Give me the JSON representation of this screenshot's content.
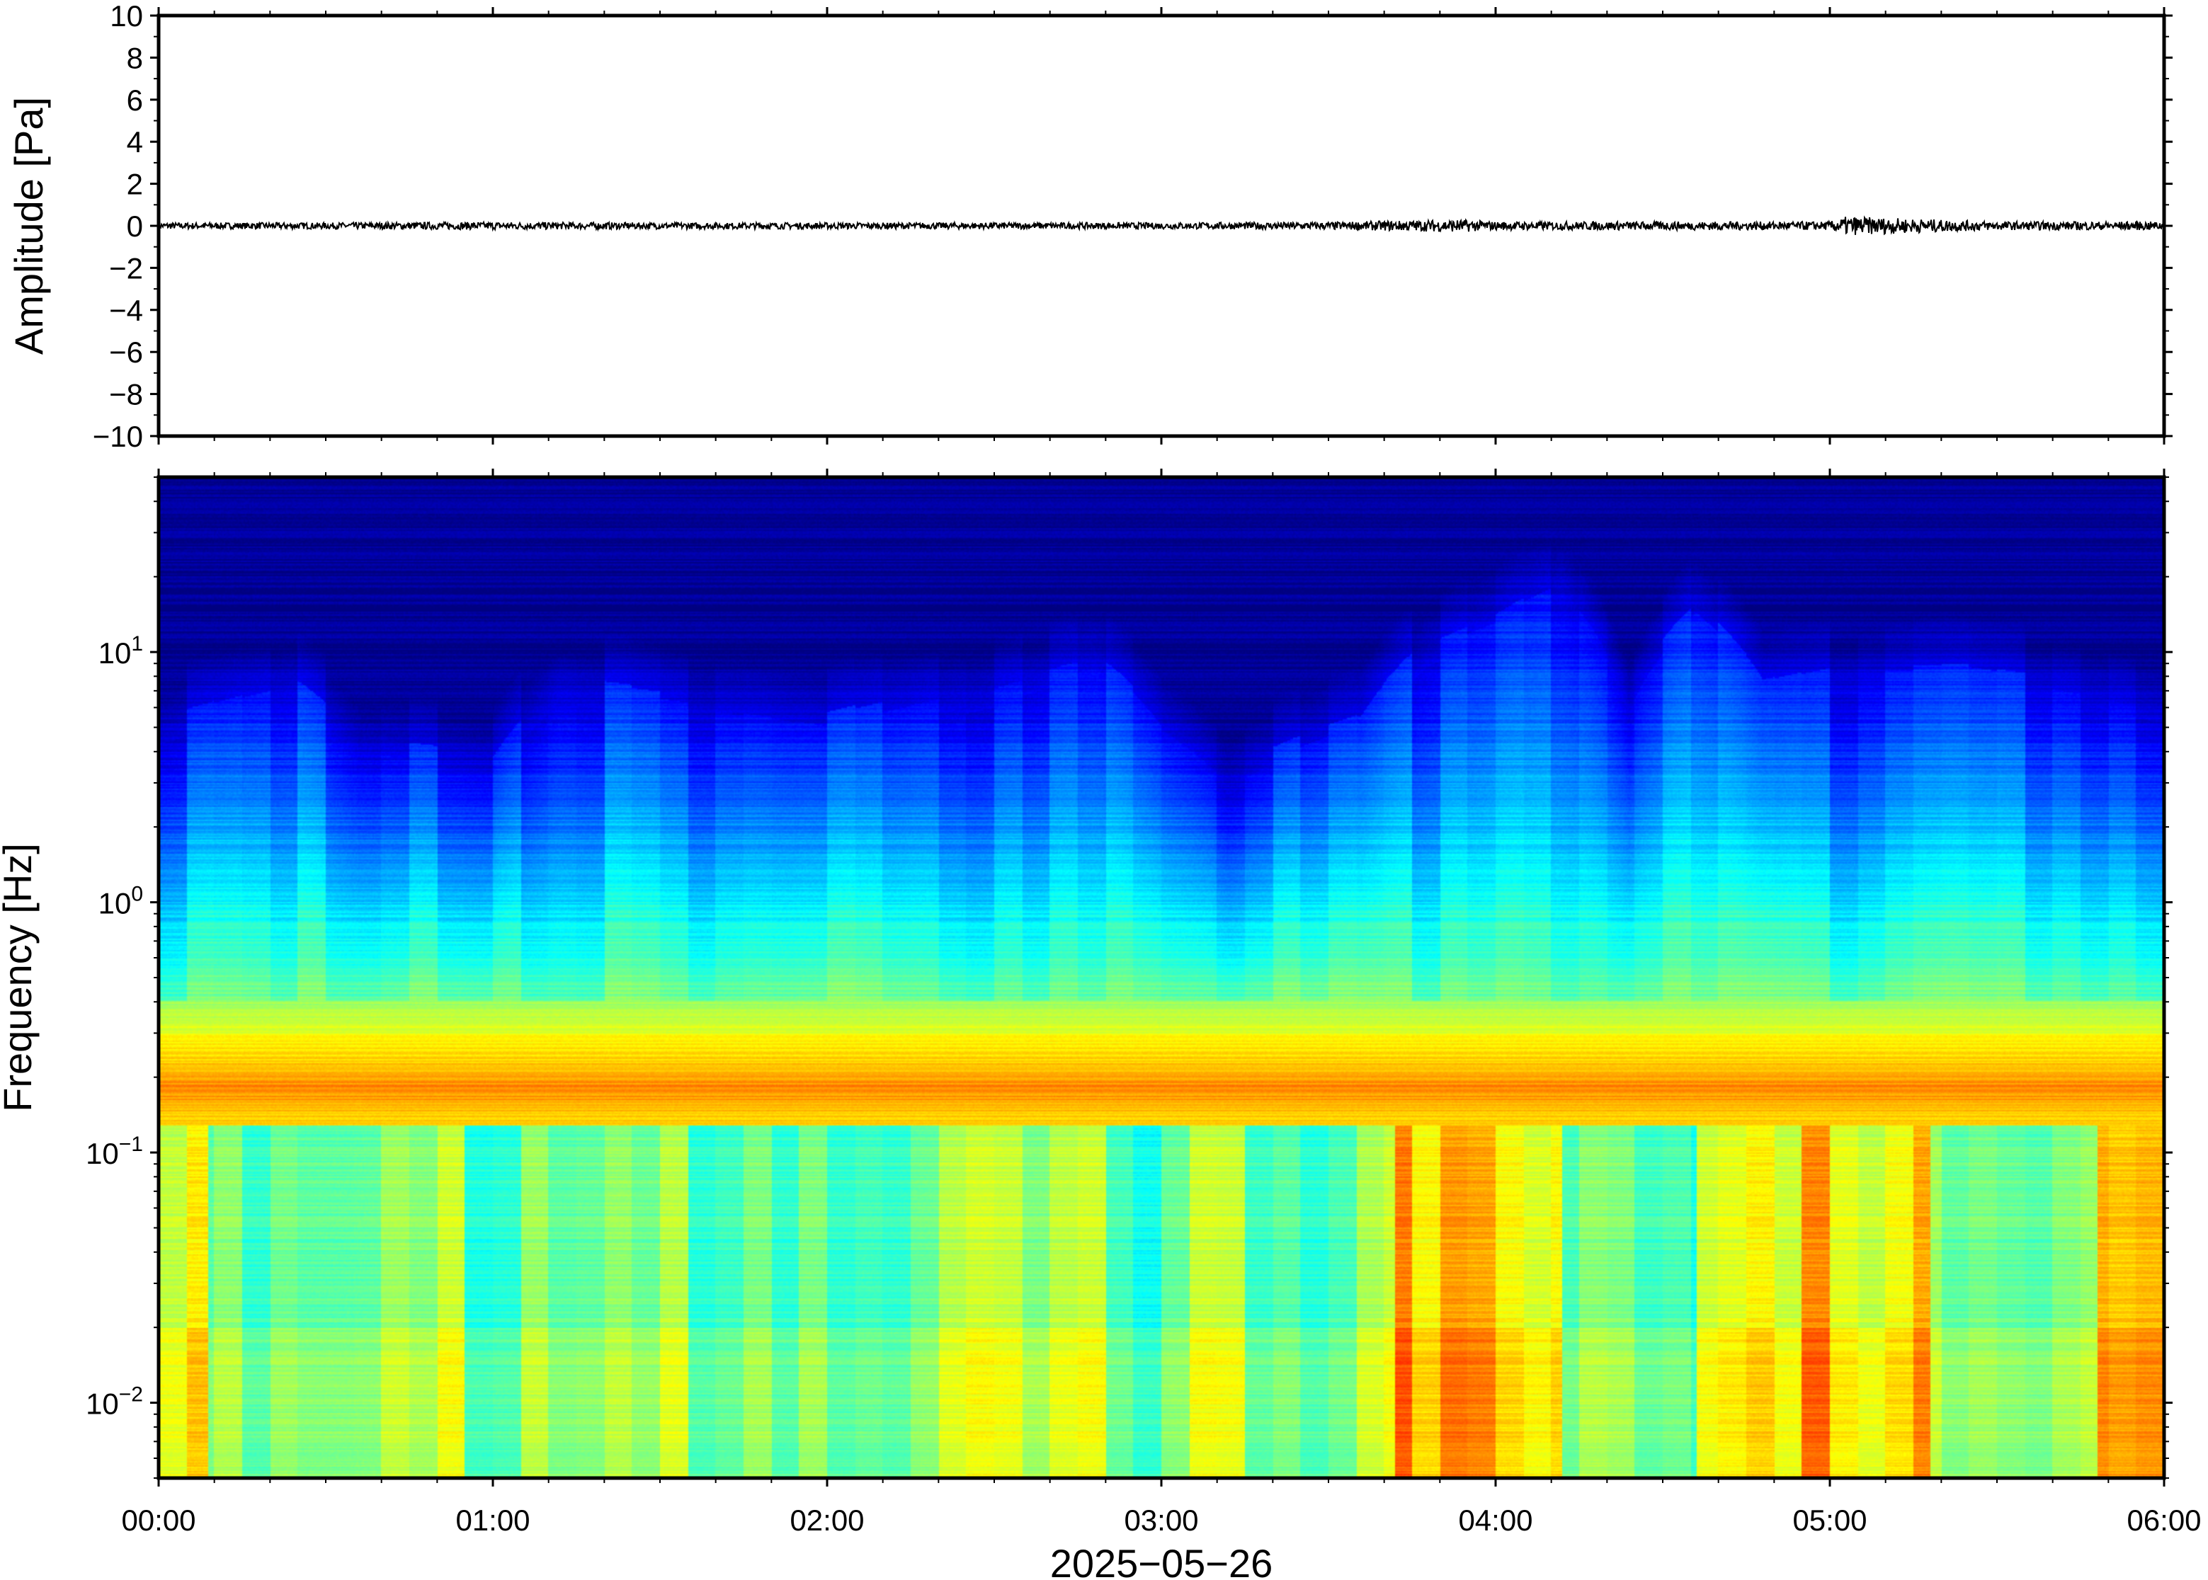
{
  "chart_data": [
    {
      "type": "line",
      "panel": "waveform",
      "ylabel": "Amplitude [Pa]",
      "ylim": [
        -10,
        10
      ],
      "yticks": [
        10,
        8,
        6,
        4,
        2,
        0,
        -2,
        -4,
        -6,
        -8,
        -10
      ],
      "ytick_labels": [
        "10",
        "8",
        "6",
        "4",
        "2",
        "0",
        "−2",
        "−4",
        "−6",
        "−8",
        "−10"
      ],
      "xlim_hours": [
        0,
        6
      ],
      "series": [
        {
          "style": "black noisy trace near zero",
          "x_hours": [
            0,
            0.5,
            1,
            1.5,
            2,
            2.5,
            3,
            3.5,
            3.9,
            4,
            4.5,
            5,
            5.05,
            5.5,
            6
          ],
          "envelope_pa": [
            0.15,
            0.15,
            0.18,
            0.15,
            0.15,
            0.15,
            0.15,
            0.18,
            0.3,
            0.2,
            0.2,
            0.2,
            0.45,
            0.2,
            0.2
          ]
        }
      ],
      "line_color": "#000000",
      "grid": false
    },
    {
      "type": "heatmap",
      "panel": "spectrogram",
      "ylabel": "Frequency [Hz]",
      "xlabel": "2025−05−26",
      "yscale": "log",
      "ylim_hz": [
        0.005,
        50
      ],
      "ytick_labels": [
        {
          "base": "10",
          "exp": "1",
          "value": 10
        },
        {
          "base": "10",
          "exp": "0",
          "value": 1
        },
        {
          "base": "10",
          "exp": "−1",
          "value": 0.1
        },
        {
          "base": "10",
          "exp": "−2",
          "value": 0.01
        }
      ],
      "xticks": [
        "00:00",
        "01:00",
        "02:00",
        "03:00",
        "04:00",
        "05:00",
        "06:00"
      ],
      "xlim_hours": [
        0,
        6
      ],
      "colormap": "jet",
      "microseism_peak_hz": 0.18,
      "high_freq_energy_cutoff_hz": {
        "x_hours": [
          0,
          0.4,
          0.6,
          1.0,
          1.2,
          1.6,
          2.0,
          2.5,
          2.8,
          3.0,
          3.2,
          3.6,
          3.8,
          4.0,
          4.2,
          4.4,
          4.6,
          4.8,
          5.0,
          5.4,
          6.0
        ],
        "hz": [
          5,
          7,
          4,
          3.5,
          7,
          6,
          5,
          7,
          9,
          5,
          3,
          5,
          10,
          13,
          18,
          6,
          14,
          7,
          8,
          8,
          6
        ]
      },
      "low_freq_energy_hours": [
        [
          0,
          0.15
        ],
        [
          3.7,
          4.2
        ],
        [
          4.6,
          5.3
        ],
        [
          5.8,
          6
        ]
      ],
      "grid": false
    }
  ]
}
